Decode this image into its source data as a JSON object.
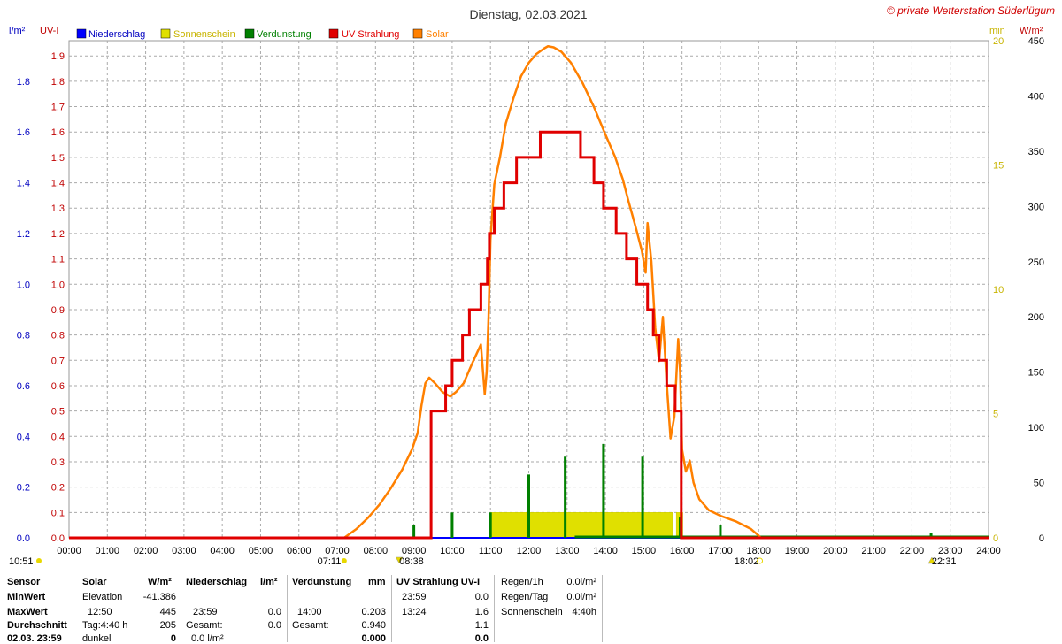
{
  "colors": {
    "niederschlag": "#0000ff",
    "sonnenschein": "#e0e000",
    "verdunstung": "#008000",
    "uv": "#e00000",
    "solar": "#ff8000",
    "grid": "#aaaaaa",
    "left_axis1": "#0000c0",
    "left_axis2": "#c00000",
    "right_axis1": "#c8b400",
    "right_axis2": "#c00000",
    "copyright": "#d00000"
  },
  "header": {
    "title": "Dienstag, 02.03.2021",
    "copyright": "© private Wetterstation Süderlügum"
  },
  "chart_data": {
    "type": "line",
    "title": "Dienstag, 02.03.2021",
    "legend": [
      "Niederschlag",
      "Sonnenschein",
      "Verdunstung",
      "UV Strahlung",
      "Solar"
    ],
    "axes": {
      "left1_unit": "l/m²",
      "left2_unit": "UV-I",
      "right1_unit": "min",
      "right2_unit": "W/m²",
      "x_ticks": [
        "00:00",
        "01:00",
        "02:00",
        "03:00",
        "04:00",
        "05:00",
        "06:00",
        "07:00",
        "08:00",
        "09:00",
        "10:00",
        "11:00",
        "12:00",
        "13:00",
        "14:00",
        "15:00",
        "16:00",
        "17:00",
        "18:00",
        "19:00",
        "20:00",
        "21:00",
        "22:00",
        "23:00",
        "24:00"
      ],
      "left1_ticks": [
        "0.0",
        "0.2",
        "0.4",
        "0.6",
        "0.8",
        "1.0",
        "1.2",
        "1.4",
        "1.6",
        "1.8"
      ],
      "left1_range": [
        0,
        1.96
      ],
      "left2_ticks": [
        "0.0",
        "0.1",
        "0.2",
        "0.3",
        "0.4",
        "0.5",
        "0.6",
        "0.7",
        "0.8",
        "0.9",
        "1.0",
        "1.1",
        "1.2",
        "1.3",
        "1.4",
        "1.5",
        "1.6",
        "1.7",
        "1.8",
        "1.9"
      ],
      "left2_range": [
        0,
        1.96
      ],
      "right1_ticks": [
        "0",
        "5",
        "10",
        "15",
        "20"
      ],
      "right1_range": [
        0,
        20
      ],
      "right2_ticks": [
        "0",
        "50",
        "100",
        "150",
        "200",
        "250",
        "300",
        "350",
        "400",
        "450"
      ],
      "right2_range": [
        0,
        450
      ]
    },
    "series": [
      {
        "name": "UV Strahlung",
        "axis": "UV-I",
        "points": [
          [
            0,
            0
          ],
          [
            9.45,
            0
          ],
          [
            9.45,
            0.5
          ],
          [
            9.83,
            0.5
          ],
          [
            9.83,
            0.6
          ],
          [
            10.0,
            0.6
          ],
          [
            10.0,
            0.7
          ],
          [
            10.27,
            0.7
          ],
          [
            10.27,
            0.8
          ],
          [
            10.45,
            0.8
          ],
          [
            10.45,
            0.9
          ],
          [
            10.75,
            0.9
          ],
          [
            10.75,
            1.0
          ],
          [
            10.92,
            1.0
          ],
          [
            10.92,
            1.1
          ],
          [
            10.97,
            1.1
          ],
          [
            10.97,
            1.2
          ],
          [
            11.1,
            1.2
          ],
          [
            11.1,
            1.3
          ],
          [
            11.35,
            1.3
          ],
          [
            11.35,
            1.4
          ],
          [
            11.68,
            1.4
          ],
          [
            11.68,
            1.5
          ],
          [
            12.3,
            1.5
          ],
          [
            12.3,
            1.6
          ],
          [
            13.35,
            1.6
          ],
          [
            13.35,
            1.5
          ],
          [
            13.7,
            1.5
          ],
          [
            13.7,
            1.4
          ],
          [
            13.95,
            1.4
          ],
          [
            13.95,
            1.3
          ],
          [
            14.28,
            1.3
          ],
          [
            14.28,
            1.2
          ],
          [
            14.55,
            1.2
          ],
          [
            14.55,
            1.1
          ],
          [
            14.82,
            1.1
          ],
          [
            14.82,
            1.0
          ],
          [
            15.1,
            1.0
          ],
          [
            15.1,
            0.9
          ],
          [
            15.25,
            0.9
          ],
          [
            15.25,
            0.8
          ],
          [
            15.4,
            0.8
          ],
          [
            15.4,
            0.7
          ],
          [
            15.6,
            0.7
          ],
          [
            15.6,
            0.6
          ],
          [
            15.82,
            0.6
          ],
          [
            15.82,
            0.5
          ],
          [
            15.98,
            0.5
          ],
          [
            15.98,
            0.0
          ],
          [
            24,
            0
          ]
        ]
      },
      {
        "name": "Solar",
        "axis": "W/m²",
        "points": [
          [
            0,
            0
          ],
          [
            7.18,
            0
          ],
          [
            7.5,
            8
          ],
          [
            7.8,
            18
          ],
          [
            8.1,
            30
          ],
          [
            8.4,
            45
          ],
          [
            8.7,
            62
          ],
          [
            8.95,
            80
          ],
          [
            9.1,
            95
          ],
          [
            9.2,
            120
          ],
          [
            9.3,
            140
          ],
          [
            9.4,
            145
          ],
          [
            9.55,
            140
          ],
          [
            9.75,
            132
          ],
          [
            9.95,
            128
          ],
          [
            10.1,
            132
          ],
          [
            10.3,
            140
          ],
          [
            10.55,
            160
          ],
          [
            10.75,
            175
          ],
          [
            10.85,
            130
          ],
          [
            10.9,
            150
          ],
          [
            10.95,
            200
          ],
          [
            11.0,
            270
          ],
          [
            11.1,
            320
          ],
          [
            11.25,
            345
          ],
          [
            11.4,
            375
          ],
          [
            11.6,
            398
          ],
          [
            11.8,
            418
          ],
          [
            12.0,
            430
          ],
          [
            12.2,
            438
          ],
          [
            12.4,
            443
          ],
          [
            12.5,
            445
          ],
          [
            12.65,
            444
          ],
          [
            12.85,
            440
          ],
          [
            13.1,
            430
          ],
          [
            13.4,
            412
          ],
          [
            13.7,
            390
          ],
          [
            14.0,
            365
          ],
          [
            14.25,
            345
          ],
          [
            14.45,
            325
          ],
          [
            14.6,
            305
          ],
          [
            14.8,
            280
          ],
          [
            14.95,
            260
          ],
          [
            15.05,
            240
          ],
          [
            15.1,
            285
          ],
          [
            15.2,
            250
          ],
          [
            15.3,
            190
          ],
          [
            15.4,
            160
          ],
          [
            15.5,
            200
          ],
          [
            15.6,
            140
          ],
          [
            15.7,
            90
          ],
          [
            15.8,
            110
          ],
          [
            15.9,
            180
          ],
          [
            15.95,
            150
          ],
          [
            16.0,
            80
          ],
          [
            16.1,
            60
          ],
          [
            16.2,
            70
          ],
          [
            16.3,
            50
          ],
          [
            16.45,
            35
          ],
          [
            16.7,
            25
          ],
          [
            17.0,
            20
          ],
          [
            17.4,
            15
          ],
          [
            17.8,
            8
          ],
          [
            18.0,
            2
          ],
          [
            18.05,
            0
          ],
          [
            24,
            0
          ]
        ]
      },
      {
        "name": "Sonnenschein",
        "axis": "min",
        "bars": [
          [
            11.0,
            15.75,
            1
          ],
          [
            15.85,
            16.02,
            1
          ]
        ]
      },
      {
        "name": "Verdunstung",
        "axis": "l/m²",
        "spikes": [
          [
            9.0,
            0.05
          ],
          [
            10.0,
            0.1
          ],
          [
            11.0,
            0.1
          ],
          [
            12.0,
            0.25
          ],
          [
            12.95,
            0.32
          ],
          [
            13.95,
            0.37
          ],
          [
            14.97,
            0.32
          ],
          [
            15.95,
            0.08
          ],
          [
            17.0,
            0.05
          ],
          [
            22.5,
            0.02
          ]
        ],
        "baseline_from": 13.2
      },
      {
        "name": "Niederschlag",
        "axis": "l/m²",
        "points": [
          [
            0,
            0
          ],
          [
            24,
            0
          ]
        ]
      }
    ]
  },
  "footer_marks": {
    "left_time": "10:51",
    "sunrise": "07:11",
    "sunrise_marker": "08:38",
    "sunset": "18:02",
    "right_marker": "22:31"
  },
  "table": {
    "labels": [
      "Sensor",
      "MinWert",
      "MaxWert",
      "Durchschnitt",
      "02.03. 23:59"
    ],
    "solar": {
      "title": "Solar",
      "unit": "W/m²",
      "rows": [
        [
          "Elevation",
          "-41.386"
        ],
        [
          "12:50",
          "445"
        ],
        [
          "Tag:4:40 h",
          "205"
        ],
        [
          "dunkel",
          "0"
        ]
      ]
    },
    "niederschlag": {
      "title": "Niederschlag",
      "unit": "l/m²",
      "rows": [
        [
          "",
          ""
        ],
        [
          "23:59",
          "0.0"
        ],
        [
          "Gesamt:",
          "0.0"
        ],
        [
          "0.0 l/m²",
          ""
        ]
      ]
    },
    "verdunstung": {
      "title": "Verdunstung",
      "unit": "mm",
      "rows": [
        [
          "",
          ""
        ],
        [
          "14:00",
          "0.203"
        ],
        [
          "Gesamt:",
          "0.940"
        ],
        [
          "",
          "0.000"
        ]
      ]
    },
    "uv": {
      "title": "UV Strahlung UV-I",
      "rows": [
        [
          "23:59",
          "0.0"
        ],
        [
          "13:24",
          "1.6"
        ],
        [
          "",
          "1.1"
        ],
        [
          "",
          "0.0"
        ]
      ]
    },
    "extra": {
      "rows": [
        [
          "Regen/1h",
          "0.0l/m²"
        ],
        [
          "Regen/Tag",
          "0.0l/m²"
        ],
        [
          "Sonnenschein",
          "4:40h"
        ]
      ]
    }
  }
}
